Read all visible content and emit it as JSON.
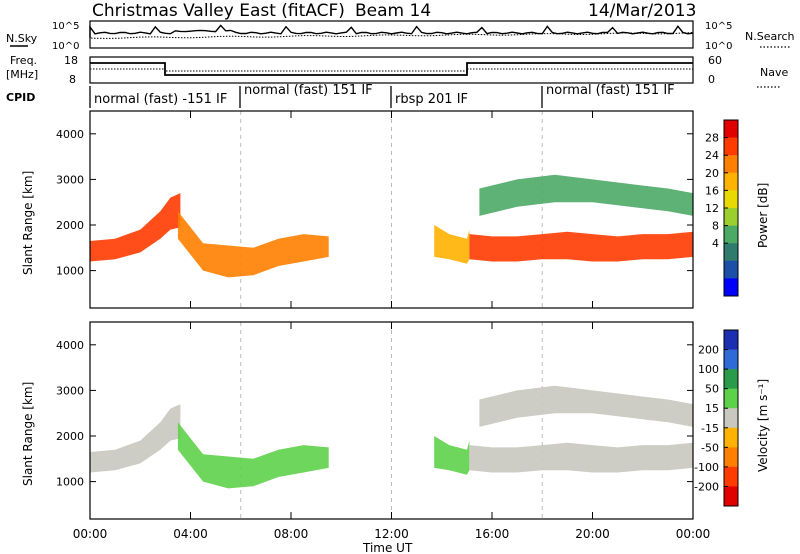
{
  "header": {
    "station": "Christmas Valley East (fitACF)",
    "beam": "Beam 14",
    "date": "14/Mar/2013"
  },
  "noise_panel": {
    "left_label": "N.Sky",
    "left_ticks": [
      "10^5",
      "10^0"
    ],
    "right_label": "N.Search",
    "right_ticks": [
      "10^5",
      "10^0"
    ]
  },
  "freq_panel": {
    "left_label": [
      "Freq.",
      "[MHz]"
    ],
    "left_ticks": [
      "18",
      "8"
    ],
    "right_label": "Nave",
    "right_ticks": [
      "60",
      "0"
    ]
  },
  "cpid": {
    "label": "CPID",
    "segments": [
      {
        "text": "normal (fast) -151 IF",
        "start_hour": 0,
        "end_hour": 6
      },
      {
        "text": "normal (fast) 151 IF",
        "start_hour": 6,
        "end_hour": 12
      },
      {
        "text": "rbsp 201 IF",
        "start_hour": 12,
        "end_hour": 18
      },
      {
        "text": "normal (fast) 151 IF",
        "start_hour": 18,
        "end_hour": 24
      }
    ]
  },
  "x_axis": {
    "label": "Time UT",
    "ticks": [
      "00:00",
      "04:00",
      "08:00",
      "12:00",
      "16:00",
      "20:00",
      "00:00"
    ]
  },
  "power_colorbar": {
    "label": "Power [dB]",
    "ticks": [
      "28",
      "24",
      "20",
      "16",
      "12",
      "8",
      "4"
    ],
    "colors": [
      "#e00000",
      "#ff3b00",
      "#ff7f00",
      "#ffb300",
      "#e8d900",
      "#9ccf2e",
      "#4caa66",
      "#2f7c6e",
      "#1c4fa8",
      "#0000ff"
    ]
  },
  "velocity_colorbar": {
    "label": "Velocity [m s⁻¹]",
    "ticks": [
      "200",
      "100",
      "50",
      "15",
      "-15",
      "-50",
      "-100",
      "-200"
    ],
    "colors": [
      "#1c2fb0",
      "#2f6ad6",
      "#2a9b4a",
      "#5ed14a",
      "#c8c8c0",
      "#ffb300",
      "#ff7f00",
      "#ff3b00",
      "#e00000"
    ]
  },
  "chart_data": [
    {
      "type": "heatmap",
      "title": "Power",
      "ylabel": "Slant Range [km]",
      "yticks": [
        "1000",
        "2000",
        "3000",
        "4000"
      ],
      "ylim": [
        180,
        4500
      ],
      "xlim": [
        0,
        24
      ],
      "series": [
        {
          "name": "band",
          "x": [
            0,
            1,
            2,
            2.8,
            3.2,
            3.6
          ],
          "y_low": [
            1200,
            1250,
            1400,
            1700,
            1900,
            1950
          ],
          "y_high": [
            1650,
            1700,
            1900,
            2300,
            2600,
            2700
          ],
          "value": 26
        },
        {
          "name": "band",
          "x": [
            3.5,
            4.5,
            5.5,
            6.5,
            7.5,
            8.5,
            9.5
          ],
          "y_low": [
            1700,
            1000,
            850,
            900,
            1100,
            1200,
            1300
          ],
          "y_high": [
            2300,
            1600,
            1550,
            1500,
            1700,
            1800,
            1750
          ],
          "value": 22
        },
        {
          "name": "band",
          "x": [
            13.7,
            14.3,
            15,
            15.1
          ],
          "y_low": [
            1300,
            1250,
            1150,
            1250
          ],
          "y_high": [
            2000,
            1800,
            1700,
            1900
          ],
          "value": 18
        },
        {
          "name": "band",
          "x": [
            15.1,
            16,
            17,
            18,
            19,
            20,
            21,
            22,
            23,
            24
          ],
          "y_low": [
            1250,
            1200,
            1200,
            1250,
            1250,
            1200,
            1200,
            1250,
            1250,
            1300
          ],
          "y_high": [
            1800,
            1750,
            1750,
            1800,
            1850,
            1800,
            1750,
            1800,
            1800,
            1850
          ],
          "value": 26
        },
        {
          "name": "band",
          "x": [
            15.5,
            17,
            18.5,
            20,
            21.5,
            23,
            24
          ],
          "y_low": [
            2200,
            2400,
            2500,
            2500,
            2400,
            2300,
            2200
          ],
          "y_high": [
            2800,
            3000,
            3100,
            3000,
            2900,
            2800,
            2700
          ],
          "value": 10
        }
      ]
    },
    {
      "type": "heatmap",
      "title": "Velocity",
      "ylabel": "Slant Range [km]",
      "yticks": [
        "1000",
        "2000",
        "3000",
        "4000"
      ],
      "ylim": [
        180,
        4500
      ],
      "xlim": [
        0,
        24
      ],
      "series": [
        {
          "name": "band",
          "x": [
            0,
            1,
            2,
            2.8,
            3.2,
            3.6
          ],
          "y_low": [
            1200,
            1250,
            1400,
            1700,
            1900,
            1950
          ],
          "y_high": [
            1650,
            1700,
            1900,
            2300,
            2600,
            2700
          ],
          "value": 0
        },
        {
          "name": "band",
          "x": [
            3.5,
            4.5,
            5.5,
            6.5,
            7.5,
            8.5,
            9.5
          ],
          "y_low": [
            1700,
            1000,
            850,
            900,
            1100,
            1200,
            1300
          ],
          "y_high": [
            2300,
            1600,
            1550,
            1500,
            1700,
            1800,
            1750
          ],
          "value": 30
        },
        {
          "name": "band",
          "x": [
            13.7,
            14.3,
            15,
            15.1
          ],
          "y_low": [
            1300,
            1250,
            1150,
            1250
          ],
          "y_high": [
            2000,
            1800,
            1700,
            1900
          ],
          "value": 30
        },
        {
          "name": "band",
          "x": [
            15.1,
            16,
            17,
            18,
            19,
            20,
            21,
            22,
            23,
            24
          ],
          "y_low": [
            1250,
            1200,
            1200,
            1250,
            1250,
            1200,
            1200,
            1250,
            1250,
            1300
          ],
          "y_high": [
            1800,
            1750,
            1750,
            1800,
            1850,
            1800,
            1750,
            1800,
            1800,
            1850
          ],
          "value": 0
        },
        {
          "name": "band",
          "x": [
            15.5,
            17,
            18.5,
            20,
            21.5,
            23,
            24
          ],
          "y_low": [
            2200,
            2400,
            2500,
            2500,
            2400,
            2300,
            2200
          ],
          "y_high": [
            2800,
            3000,
            3100,
            3000,
            2900,
            2800,
            2700
          ],
          "value": 0
        }
      ]
    }
  ]
}
